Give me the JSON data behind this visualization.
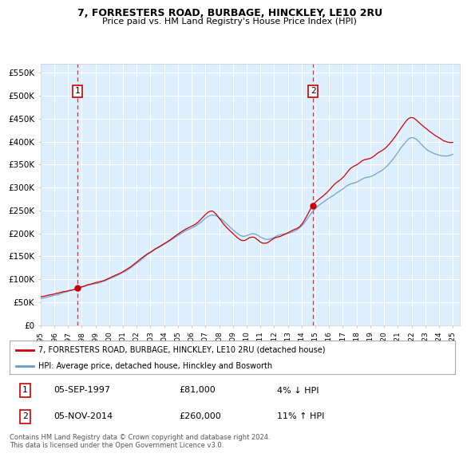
{
  "title1": "7, FORRESTERS ROAD, BURBAGE, HINCKLEY, LE10 2RU",
  "title2": "Price paid vs. HM Land Registry's House Price Index (HPI)",
  "ylabel_ticks": [
    "£0",
    "£50K",
    "£100K",
    "£150K",
    "£200K",
    "£250K",
    "£300K",
    "£350K",
    "£400K",
    "£450K",
    "£500K",
    "£550K"
  ],
  "ylabel_values": [
    0,
    50000,
    100000,
    150000,
    200000,
    250000,
    300000,
    350000,
    400000,
    450000,
    500000,
    550000
  ],
  "ylim": [
    0,
    570000
  ],
  "sale1_year": 1997.67,
  "sale1_price": 81000,
  "sale2_year": 2014.84,
  "sale2_price": 260000,
  "legend_line1": "7, FORRESTERS ROAD, BURBAGE, HINCKLEY, LE10 2RU (detached house)",
  "legend_line2": "HPI: Average price, detached house, Hinckley and Bosworth",
  "annot1_date": "05-SEP-1997",
  "annot1_price": "£81,000",
  "annot1_hpi": "4% ↓ HPI",
  "annot2_date": "05-NOV-2014",
  "annot2_price": "£260,000",
  "annot2_hpi": "11% ↑ HPI",
  "footer": "Contains HM Land Registry data © Crown copyright and database right 2024.\nThis data is licensed under the Open Government Licence v3.0.",
  "hpi_color": "#6699cc",
  "price_color": "#cc0000",
  "bg_color": "#ddeeff",
  "grid_color": "#ffffff",
  "xlim_start": 1995,
  "xlim_end": 2025.5
}
